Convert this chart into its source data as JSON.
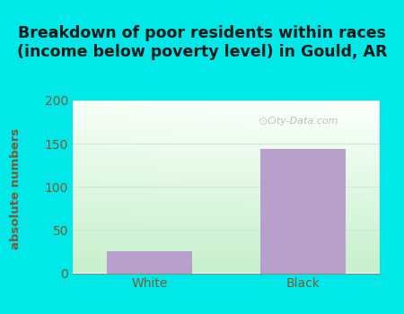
{
  "categories": [
    "White",
    "Black"
  ],
  "values": [
    25,
    144
  ],
  "bar_color": "#b8a0cc",
  "title_line1": "Breakdown of poor residents within races",
  "title_line2": "(income below poverty level) in Gould, AR",
  "ylabel": "absolute numbers",
  "ylim": [
    0,
    200
  ],
  "yticks": [
    0,
    50,
    100,
    150,
    200
  ],
  "background_outer": "#00e8e8",
  "plot_bg_tl": "#f0faf0",
  "plot_bg_tr": "#fafffe",
  "plot_bg_bl": "#c8eec8",
  "plot_bg_br": "#e8faf0",
  "grid_color": "#d0e8d0",
  "ylabel_color": "#7a5a3a",
  "tick_label_color": "#7a5a3a",
  "title_color": "#1a1a1a",
  "watermark_text": "City-Data.com",
  "watermark_color": "#b0bcb8",
  "title_fontsize": 12.5,
  "ylabel_fontsize": 9.5,
  "tick_fontsize": 10
}
